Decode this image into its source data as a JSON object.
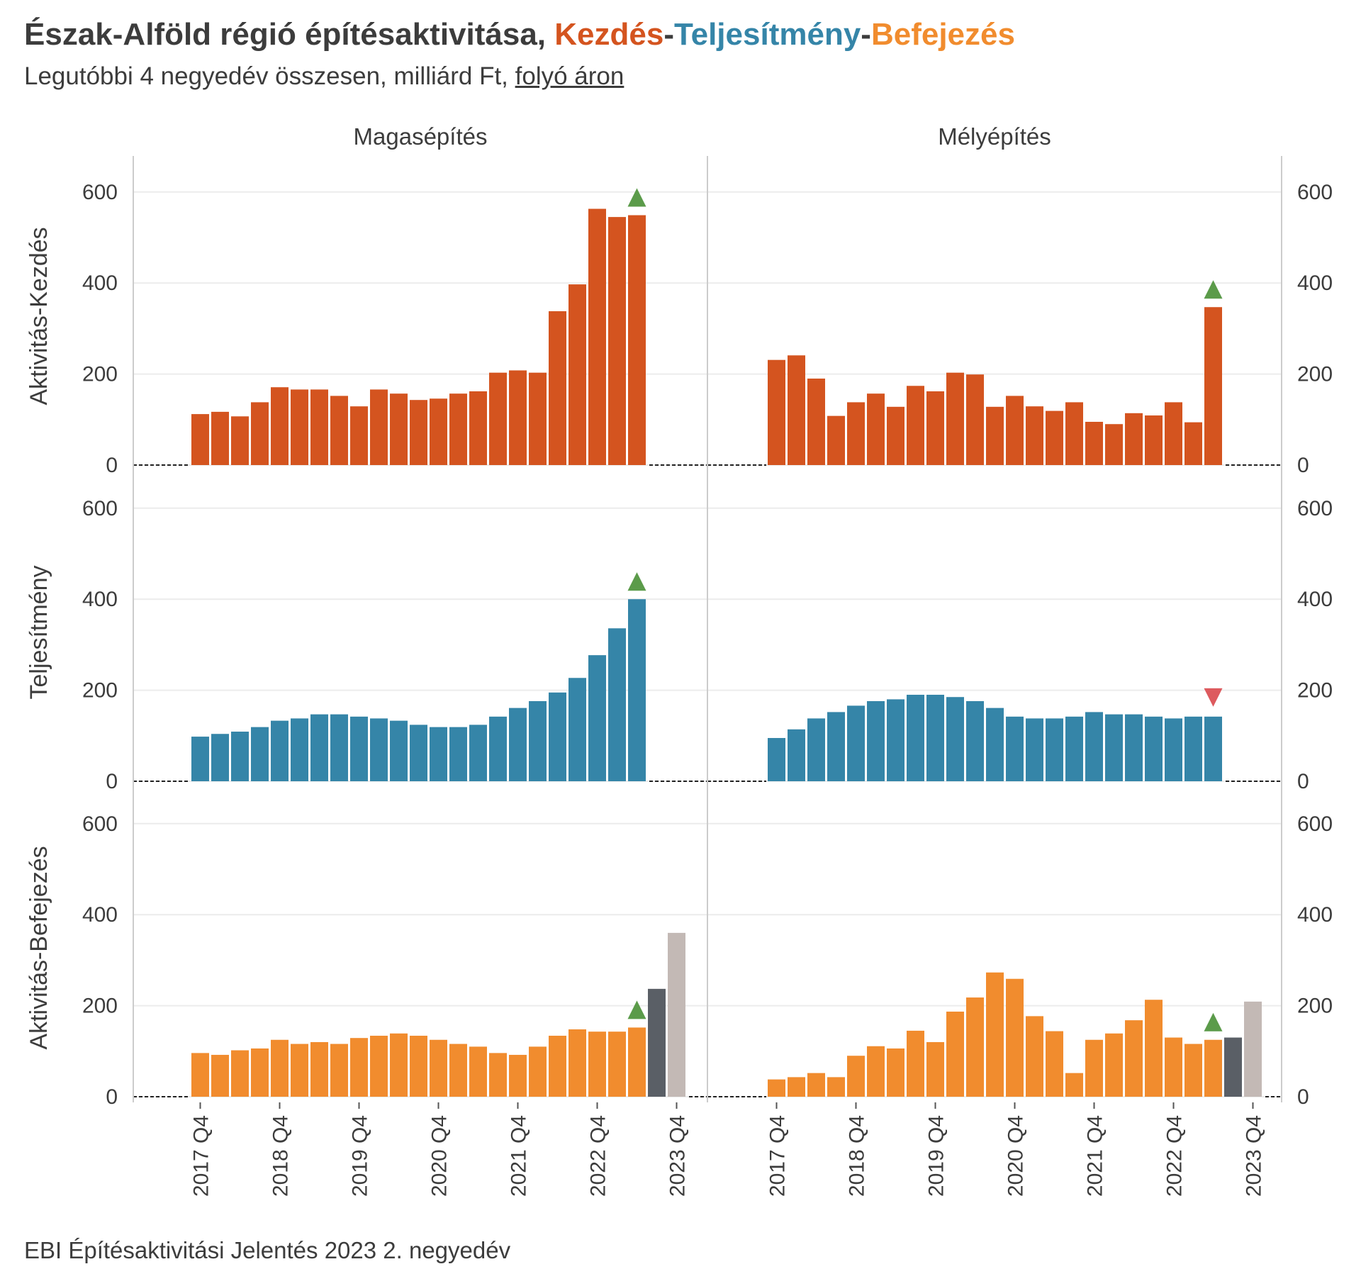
{
  "header": {
    "title_prefix": "Észak-Alföld régió építésaktivitása, ",
    "title_kezdes": "Kezdés",
    "title_sep1": "-",
    "title_teljesitmeny": "Teljesítmény",
    "title_sep2": "-",
    "title_befejezes": "Befejezés",
    "subtitle_prefix": "Legutóbbi 4 negyedév összesen, milliárd Ft, ",
    "subtitle_underlined": "folyó áron"
  },
  "footer": {
    "source": "EBI Építésaktivitási Jelentés 2023 2. negyedév"
  },
  "chart_data": {
    "type": "bar",
    "layout": "faceted grid (3 rows x 2 columns)",
    "columns": [
      "Magasépítés",
      "Mélyépítés"
    ],
    "rows": [
      "Aktivitás-Kezdés",
      "Teljesítmény",
      "Aktivitás-Befejezés"
    ],
    "ylim": [
      0,
      650
    ],
    "yticks": [
      0,
      200,
      400,
      600
    ],
    "xtick_labels": [
      "2017 Q4",
      "2018 Q4",
      "2019 Q4",
      "2020 Q4",
      "2021 Q4",
      "2022 Q4",
      "2023 Q4"
    ],
    "x_start": "2017 Q4",
    "quarters_per_tick": 4,
    "colors": {
      "Aktivitás-Kezdés": "#d4541f",
      "Teljesítmény": "#3585a8",
      "Aktivitás-Befejezés": "#f18c2e",
      "forecast_next": "#5a5f66",
      "forecast_later": "#c3b9b5",
      "arrow_up": "#5b9b4a",
      "arrow_down": "#dd5a5e"
    },
    "panels": [
      {
        "row": "Aktivitás-Kezdés",
        "column": "Magasépítés",
        "values": [
          112,
          117,
          107,
          138,
          171,
          166,
          166,
          152,
          129,
          166,
          157,
          143,
          146,
          157,
          162,
          203,
          208,
          203,
          338,
          397,
          563,
          545,
          549
        ],
        "forecast": [],
        "arrow": "up"
      },
      {
        "row": "Aktivitás-Kezdés",
        "column": "Mélyépítés",
        "values": [
          231,
          241,
          190,
          108,
          138,
          157,
          128,
          174,
          162,
          203,
          199,
          128,
          152,
          129,
          119,
          138,
          95,
          90,
          114,
          109,
          138,
          94,
          347
        ],
        "forecast": [],
        "arrow": "up"
      },
      {
        "row": "Teljesítmény",
        "column": "Magasépítés",
        "values": [
          98,
          104,
          109,
          119,
          133,
          138,
          147,
          147,
          142,
          138,
          133,
          124,
          119,
          119,
          124,
          142,
          161,
          176,
          195,
          227,
          277,
          336,
          400
        ],
        "forecast": [],
        "arrow": "up"
      },
      {
        "row": "Teljesítmény",
        "column": "Mélyépítés",
        "values": [
          95,
          114,
          138,
          152,
          166,
          176,
          180,
          190,
          190,
          185,
          176,
          161,
          142,
          138,
          138,
          142,
          152,
          147,
          147,
          142,
          138,
          142,
          142
        ],
        "forecast": [],
        "arrow": "down"
      },
      {
        "row": "Aktivitás-Befejezés",
        "column": "Magasépítés",
        "values": [
          96,
          92,
          102,
          106,
          125,
          116,
          120,
          116,
          129,
          134,
          139,
          134,
          125,
          116,
          110,
          96,
          92,
          110,
          134,
          148,
          143,
          143,
          152
        ],
        "forecast": [
          237,
          360
        ],
        "arrow": "up"
      },
      {
        "row": "Aktivitás-Befejezés",
        "column": "Mélyépítés",
        "values": [
          38,
          43,
          52,
          43,
          90,
          111,
          106,
          145,
          120,
          187,
          218,
          273,
          259,
          177,
          144,
          52,
          125,
          139,
          168,
          213,
          130,
          116,
          125
        ],
        "forecast": [
          130,
          209
        ],
        "arrow": "up"
      }
    ]
  }
}
